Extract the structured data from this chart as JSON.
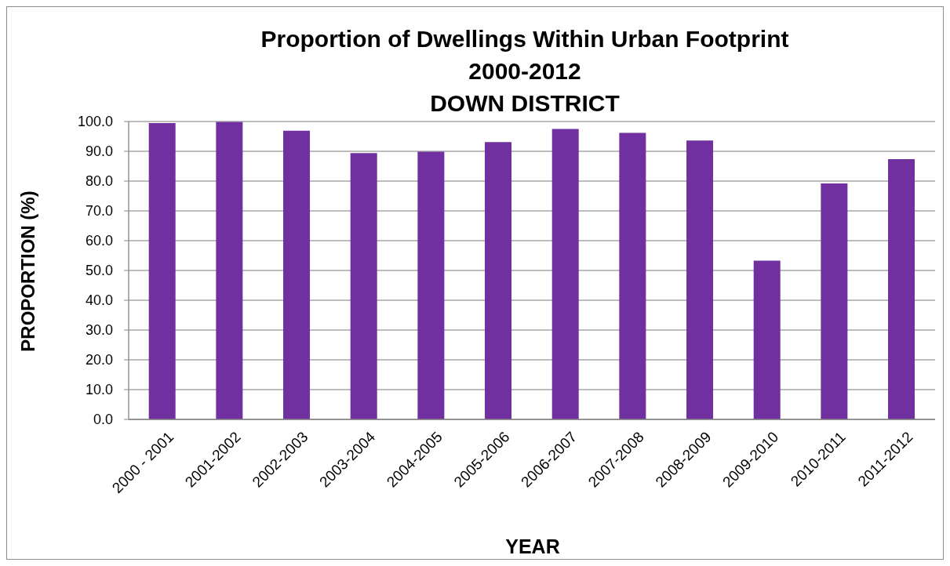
{
  "chart_data": {
    "type": "bar",
    "title": "Proportion of Dwellings Within Urban Footprint\n2000-2012\nDOWN DISTRICT",
    "xlabel": "YEAR",
    "ylabel": "PROPORTION (%)",
    "categories": [
      "2000 - 2001",
      "2001-2002",
      "2002-2003",
      "2003-2004",
      "2004-2005",
      "2005-2006",
      "2006-2007",
      "2007-2008",
      "2008-2009",
      "2009-2010",
      "2010-2011",
      "2011-2012"
    ],
    "values": [
      99.5,
      99.9,
      96.9,
      89.4,
      89.9,
      93.1,
      97.5,
      96.2,
      93.6,
      53.3,
      79.2,
      87.4
    ],
    "color": "#7030a0",
    "ylim": [
      0,
      100
    ],
    "yticks": [
      {
        "value": 0,
        "label": "0.0"
      },
      {
        "value": 10,
        "label": "10.0"
      },
      {
        "value": 20,
        "label": "20.0"
      },
      {
        "value": 30,
        "label": "30.0"
      },
      {
        "value": 40,
        "label": "40.0"
      },
      {
        "value": 50,
        "label": "50.0"
      },
      {
        "value": 60,
        "label": "60.0"
      },
      {
        "value": 70,
        "label": "70.0"
      },
      {
        "value": 80,
        "label": "80.0"
      },
      {
        "value": 90,
        "label": "90.0"
      },
      {
        "value": 100,
        "label": "100.0"
      }
    ],
    "grid": "y"
  }
}
